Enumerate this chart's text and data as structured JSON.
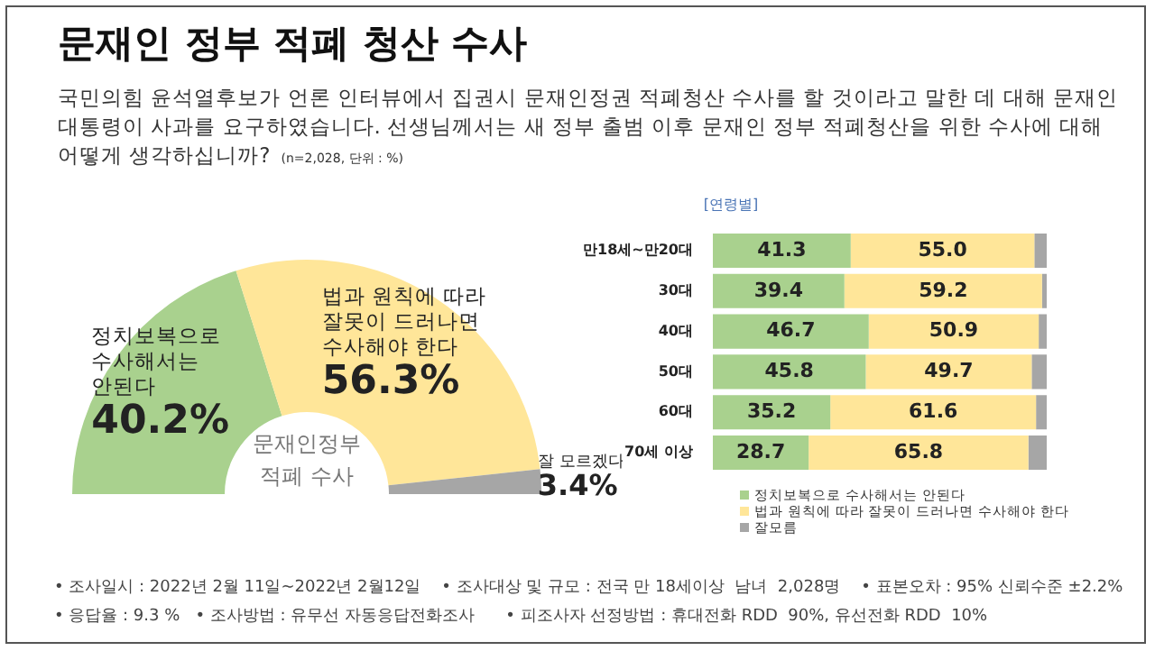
{
  "chart_data": [
    {
      "type": "donut",
      "title": "문재인 정부 적폐 청산 수사",
      "subtitle": "국민의힘 윤석열후보가 언론 인터뷰에서 집권시 문재인정권 적폐청산 수사를 할 것이라고 말한 데 대해 문재인 대통령이 사과를 요구하였습니다. 선생님께서는 새 정부 출범 이후 문재인 정부 적폐청산을 위한 수사에 대해 어떻게 생각하십니까?",
      "categories": [
        "정치보복으로 수사해서는 안된다",
        "법과 원칙에 따라 잘못이 드러나면 수사해야 한다",
        "잘 모르겠다"
      ],
      "values": [
        40.2,
        56.3,
        3.4
      ],
      "colors": [
        "#a9d18e",
        "#ffe699",
        "#a6a6a6"
      ],
      "value_labels": [
        "40.2%",
        "56.3%",
        "3.4%"
      ],
      "legend": false,
      "annotations": [
        "(n=2,028, 단위 : %)",
        "문재인정부 적폐 수사",
        "• 조사일시 : 2022년 2월 11일~2022년 2월12일    • 조사대상 및 규모 : 전국 만 18세이상  남녀  2,028명    • 표본오차 : 95% 신뢰수준 ±2.2%",
        "• 응답율 : 9.3 %   • 조사방법 : 유무선 자동응답전화조사      • 피조사자 선정방법 : 휴대전화 RDD  90%, 유선전화 RDD  10%"
      ]
    },
    {
      "type": "bar",
      "orientation": "horizontal",
      "stacked": true,
      "title": "[연령별]",
      "categories": [
        "만18세~만20대",
        "30대",
        "40대",
        "50대",
        "60대",
        "70세 이상"
      ],
      "xlim": [
        0,
        100
      ],
      "tick_labels": "y",
      "legend": "bottom",
      "series": [
        {
          "name": "정치보복으로 수사해서는 안된다",
          "color": "#a9d18e",
          "values": [
            41.3,
            39.4,
            46.7,
            45.8,
            35.2,
            28.7
          ],
          "value_labels": [
            "41.3",
            "39.4",
            "46.7",
            "45.8",
            "35.2",
            "28.7"
          ]
        },
        {
          "name": "법과 원칙에 따라 잘못이 드러나면 수사해야 한다",
          "color": "#ffe699",
          "values": [
            55.0,
            59.2,
            50.9,
            49.7,
            61.6,
            65.8
          ],
          "value_labels": [
            "55.0",
            "59.2",
            "50.9",
            "49.7",
            "61.6",
            "65.8"
          ]
        },
        {
          "name": "잘모름",
          "color": "#a6a6a6",
          "values": [
            3.7,
            1.4,
            2.4,
            4.5,
            3.2,
            5.5
          ]
        }
      ]
    }
  ]
}
